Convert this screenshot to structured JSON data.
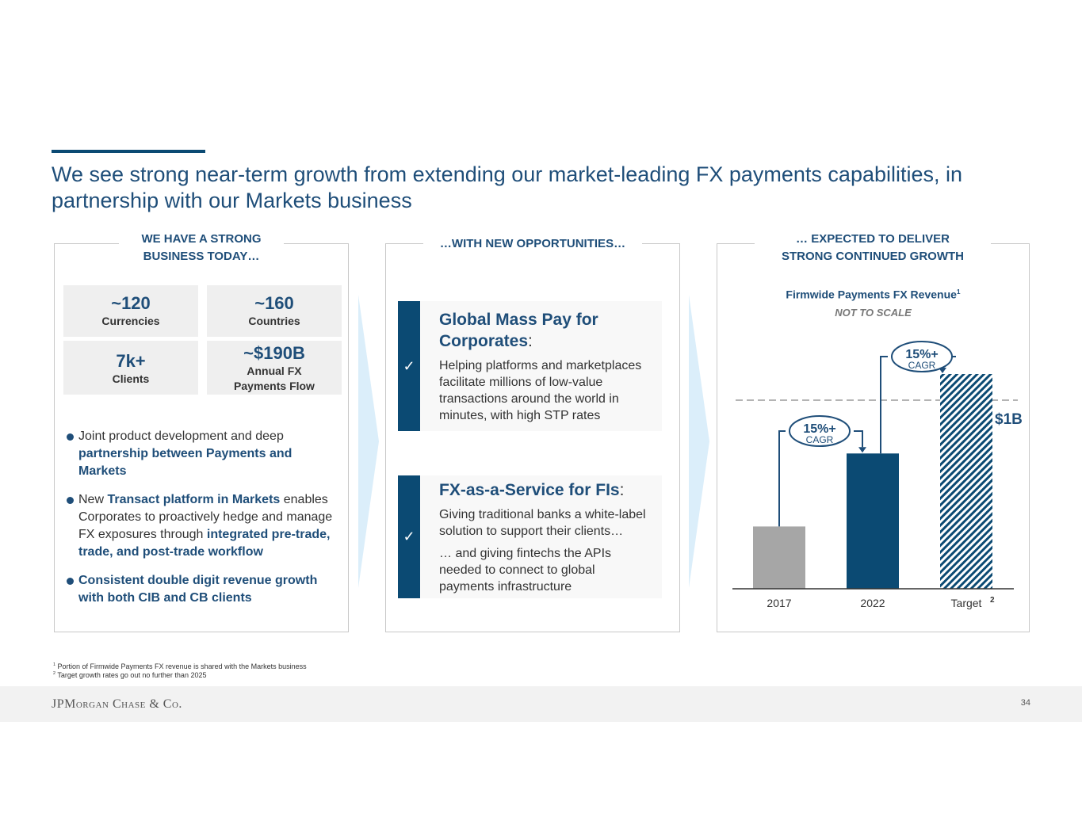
{
  "title": "We see strong near-term growth from extending our market-leading FX payments capabilities, in partnership with our Markets business",
  "panel1": {
    "heading_line1": "WE HAVE A STRONG",
    "heading_line2": "BUSINESS TODAY…",
    "stats": [
      {
        "value": "~120",
        "label": "Currencies",
        "label2": ""
      },
      {
        "value": "~160",
        "label": "Countries",
        "label2": ""
      },
      {
        "value": "7k+",
        "label": "Clients",
        "label2": ""
      },
      {
        "value": "~$190B",
        "label": "Annual FX",
        "label2": "Payments Flow"
      }
    ],
    "bullets": [
      {
        "a": "Joint product development and deep ",
        "b": "partnership between Payments and Markets",
        "c": "",
        "d": "",
        "e": ""
      },
      {
        "a": "New ",
        "b": "Transact platform in Markets",
        "c": " enables Corporates to proactively hedge and manage FX exposures through ",
        "d": "integrated pre-trade, trade, and post-trade workflow",
        "e": ""
      },
      {
        "a": "",
        "b": "Consistent double digit revenue growth with both CIB and CB clients",
        "c": "",
        "d": "",
        "e": ""
      }
    ]
  },
  "panel2": {
    "heading": "…WITH NEW OPPORTUNITIES…",
    "check": "✓",
    "opportunities": [
      {
        "title_line1": "Global Mass Pay for",
        "title_line2": "Corporates",
        "colon": ":",
        "text": "Helping platforms and marketplaces facilitate millions of low-value transactions around the world in minutes, with high STP rates",
        "text2": ""
      },
      {
        "title_line1": "FX-as-a-Service for FIs",
        "title_line2": "",
        "colon": ":",
        "text": "Giving traditional banks a white-label solution to support their clients…",
        "text2": "… and giving fintechs the APIs needed to connect to global payments infrastructure"
      }
    ]
  },
  "panel3": {
    "heading_line1": "… EXPECTED TO DELIVER",
    "heading_line2": "STRONG CONTINUED GROWTH",
    "chart_title": "Firmwide Payments FX Revenue",
    "chart_title_sup": "1",
    "chart_subtitle": "NOT TO SCALE"
  },
  "chart_data": {
    "type": "bar",
    "title": "Firmwide Payments FX Revenue",
    "subtitle": "NOT TO SCALE",
    "categories": [
      "2017",
      "2022",
      "Target"
    ],
    "category_sup": [
      "",
      "",
      "2"
    ],
    "values": [
      0.29,
      0.63,
      1.0
    ],
    "units": "$B (relative, not to scale)",
    "ylim": [
      0,
      1
    ],
    "bar_colors": [
      "#a6a6a6",
      "#0b4a73",
      "hatched-#0b4a73"
    ],
    "reference_line": {
      "label": "$1B",
      "style": "dashed"
    },
    "annotations": [
      {
        "from": "2017",
        "to": "2022",
        "value": "15%+",
        "sub": "CAGR"
      },
      {
        "from": "2022",
        "to": "Target",
        "value": "15%+",
        "sub": "CAGR"
      }
    ]
  },
  "footnotes": [
    {
      "sup": "1",
      "text": "Portion of Firmwide Payments FX revenue is shared with the Markets business"
    },
    {
      "sup": "2",
      "text": "Target growth rates go out no further than 2025"
    }
  ],
  "footer": {
    "logo": "JPMorgan Chase & Co.",
    "page": "34"
  },
  "colors": {
    "navy": "#0b4a73",
    "title_blue": "#1f4e79",
    "gray_bar": "#a6a6a6",
    "chevron": "#dbeefa"
  }
}
